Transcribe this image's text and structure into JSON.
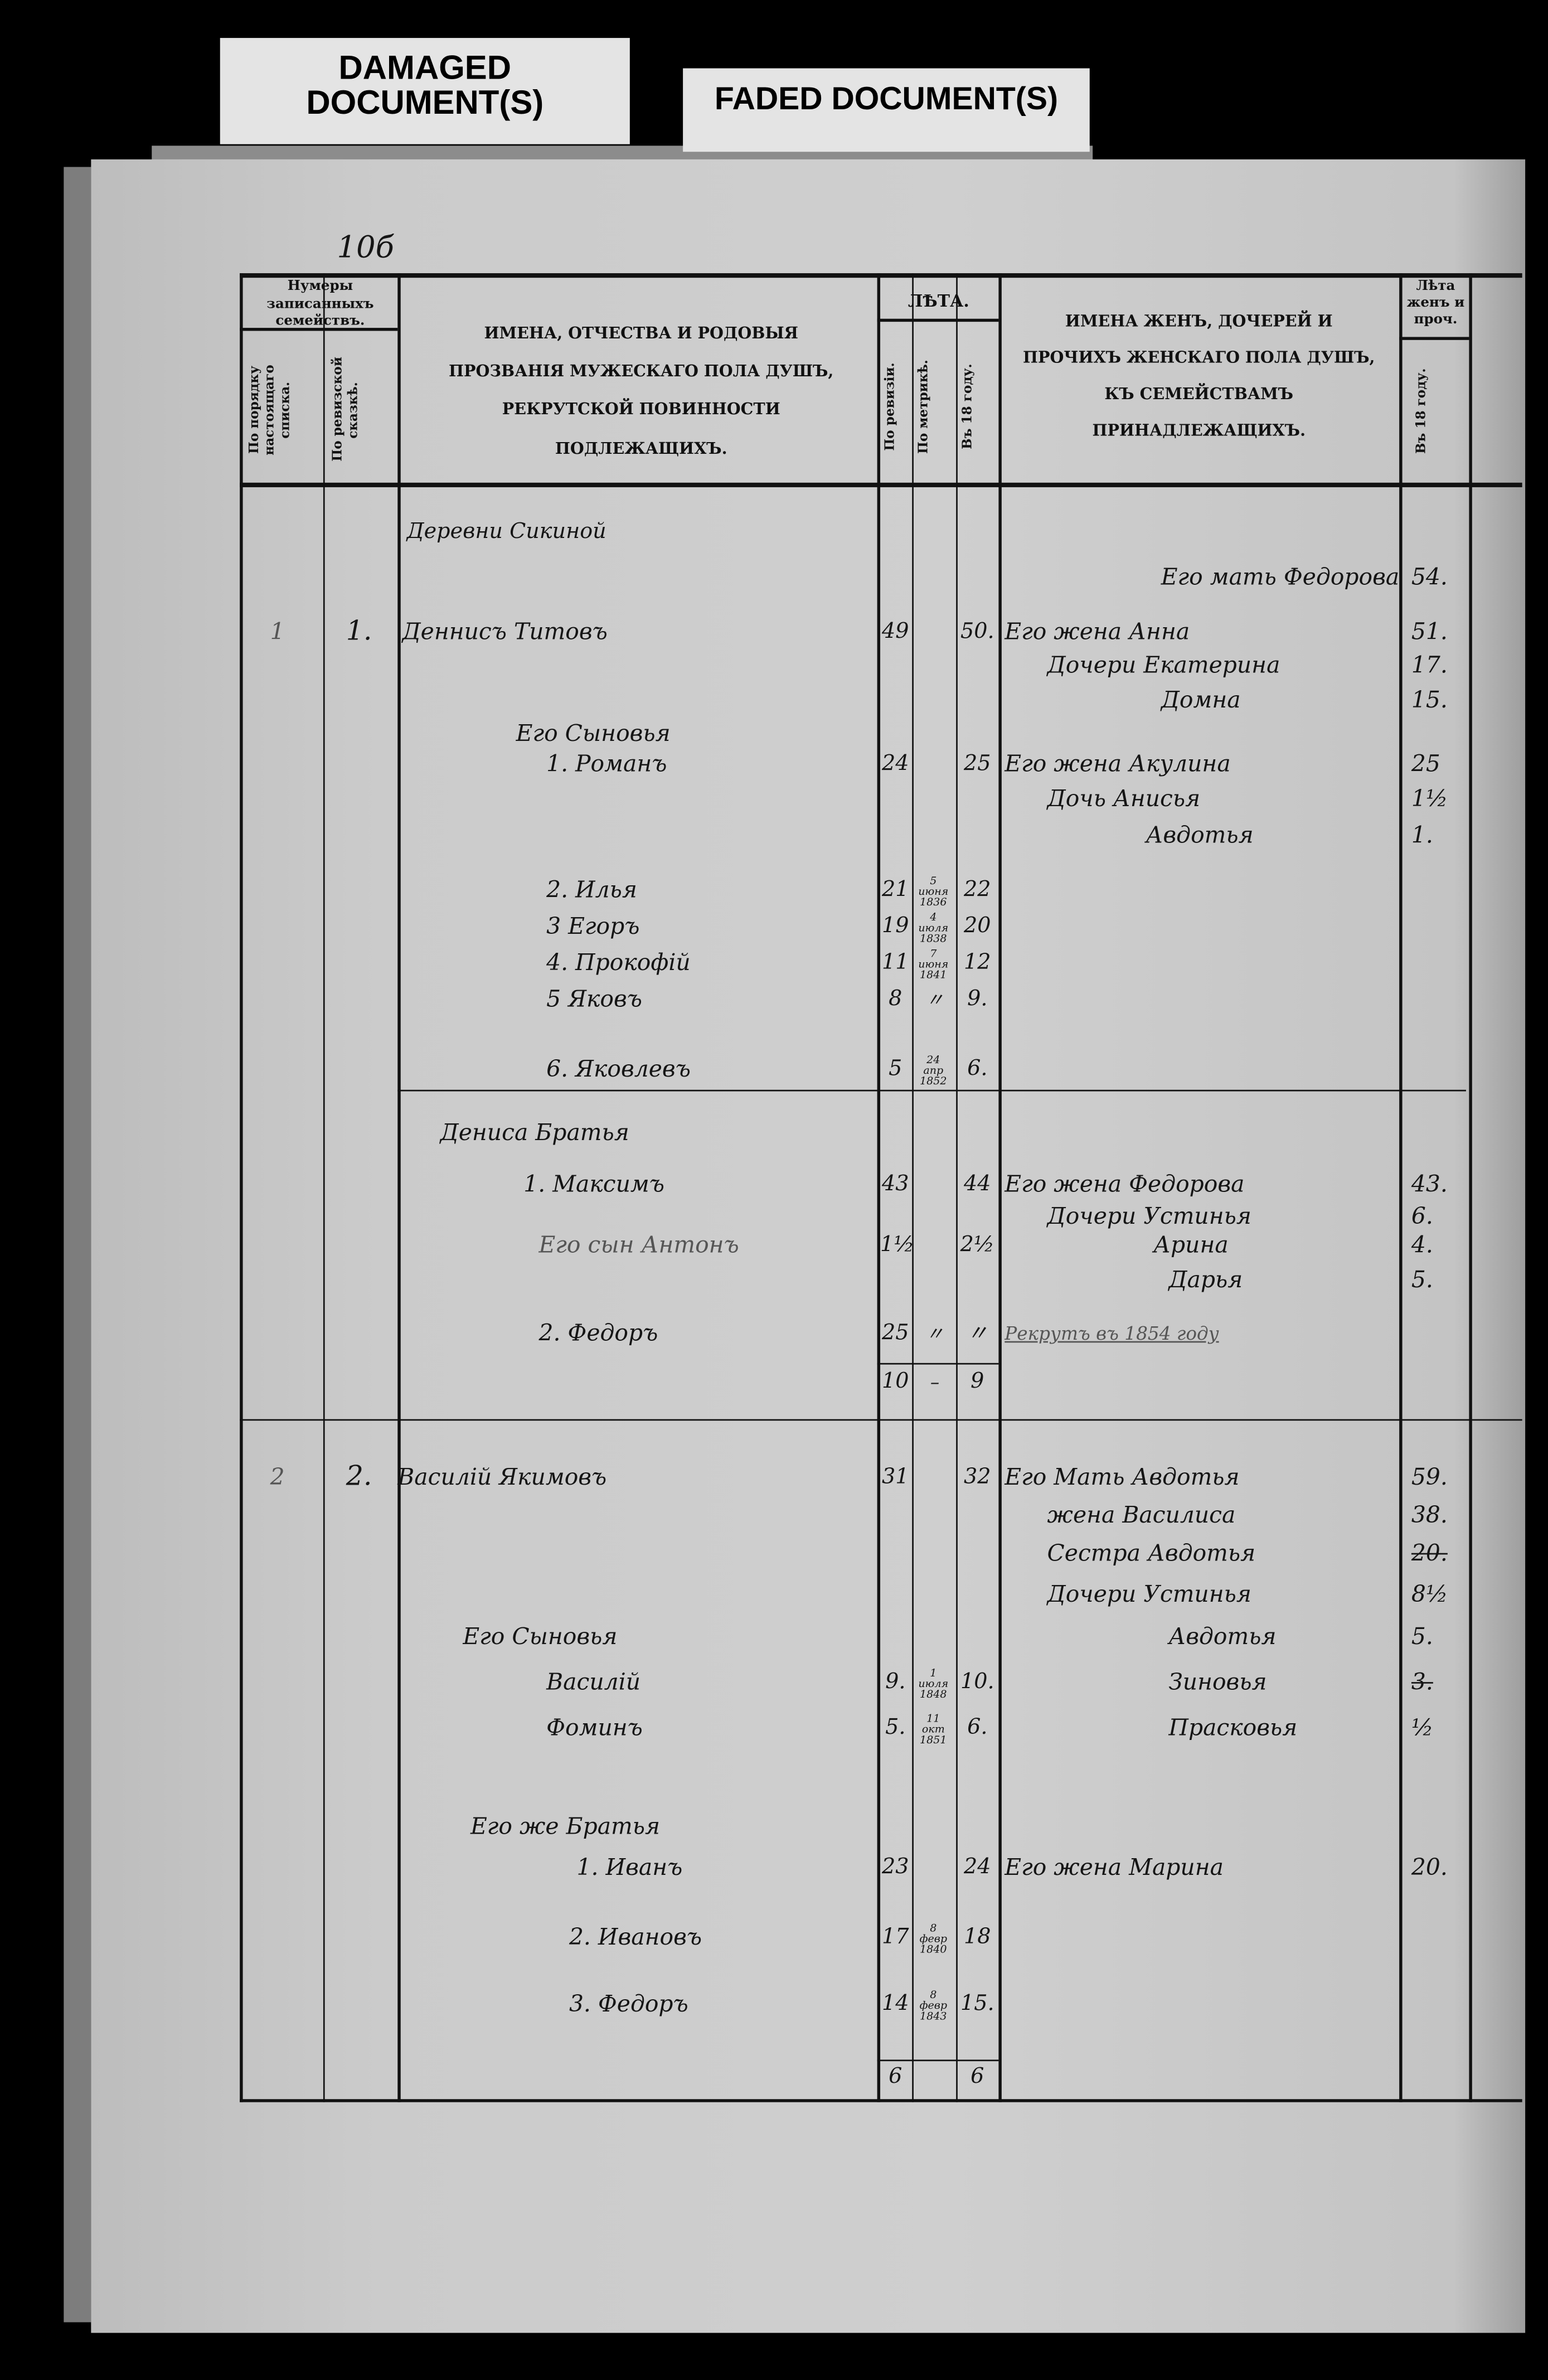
{
  "tags": {
    "damaged": "DAMAGED DOCUMENT(S)",
    "faded": "FADED DOCUMENT(S)"
  },
  "page_number": "10б",
  "header": {
    "family_numbers": "Нумеры записанныхъ семействъ.",
    "by_current_list": "По порядку настоящаго списка.",
    "by_revision_tale": "По ревизской сказкѣ.",
    "male_names": "ИМЕНА, ОТЧЕСТВА И РОДОВЫЯ ПРОЗВАНІЯ МУЖЕСКАГО ПОЛА ДУШЪ, РЕКРУТСКОЙ ПОВИННОСТИ ПОДЛЕЖАЩИХЪ.",
    "ages": "ЛѢТА.",
    "by_revision": "По ревизіи.",
    "by_metrics": "По метрикѣ.",
    "in_18_year": "Въ 18 году.",
    "female_names": "ИМЕНА ЖЕНЪ, ДОЧЕРЕЙ И ПРОЧИХЪ ЖЕНСКАГО ПОЛА ДУШЪ, КЪ СЕМЕЙСТВАМЪ ПРИНАДЛЕЖАЩИХЪ.",
    "female_ages": "Лѣта женъ и проч.",
    "female_in_18_year": "Въ 18 году."
  },
  "rows": [
    {
      "male": "Деревни Сикиной"
    },
    {
      "female": "Его мать Федорова",
      "fage": "54."
    },
    {
      "fam": "1",
      "rev_no": "1.",
      "male": "Деннисъ Титовъ",
      "rev": "49",
      "y18": "50.",
      "female": "Его жена Анна",
      "fage": "51."
    },
    {
      "female": "Дочери Екатерина",
      "fage": "17."
    },
    {
      "female": "Домна",
      "fage": "15."
    },
    {
      "male": "Его Сыновья"
    },
    {
      "male": "1. Романъ",
      "rev": "24",
      "y18": "25",
      "female": "Его жена Акулина",
      "fage": "25"
    },
    {
      "female": "Дочь Анисья",
      "fage": "1½"
    },
    {
      "female": "Авдотья",
      "fage": "1."
    },
    {
      "male": "2. Илья",
      "rev": "21",
      "metr": "5 июня 1836",
      "y18": "22"
    },
    {
      "male": "3 Егоръ",
      "rev": "19",
      "metr": "4 июля 1838",
      "y18": "20"
    },
    {
      "male": "4. Прокофій",
      "rev": "11",
      "metr": "7 июня 1841",
      "y18": "12"
    },
    {
      "male": "5 Яковъ",
      "rev": "8",
      "metr": "〃",
      "y18": "9."
    },
    {
      "male": "6. Яковлевъ",
      "rev": "5",
      "metr": "24 апр 1852",
      "y18": "6."
    },
    {
      "male": "Дениса Братья"
    },
    {
      "male": "1. Максимъ",
      "rev": "43",
      "y18": "44",
      "female": "Его жена Федорова",
      "fage": "43."
    },
    {
      "female": "Дочери Устинья",
      "fage": "6."
    },
    {
      "male": "Его сын Антонъ",
      "rev": "1½",
      "y18": "2½",
      "female": "Арина",
      "fage": "4."
    },
    {
      "female": "Дарья",
      "fage": "5."
    },
    {
      "male": "2. Федоръ",
      "rev": "25",
      "metr": "〃",
      "y18": "〃",
      "female": "Рекрутъ въ 1854 году"
    },
    {
      "rev": "10",
      "metr": "–",
      "y18": "9"
    },
    {
      "fam": "2",
      "rev_no": "2.",
      "male": "Василій Якимовъ",
      "rev": "31",
      "y18": "32",
      "female": "Его Мать Авдотья",
      "fage": "59."
    },
    {
      "female": "жена Василиса",
      "fage": "38."
    },
    {
      "female": "Сестра Авдотья",
      "fage": "20."
    },
    {
      "female": "Дочери Устинья",
      "fage": "8½"
    },
    {
      "male": "Его Сыновья",
      "female": "Авдотья",
      "fage": "5."
    },
    {
      "male": "Василій",
      "rev": "9.",
      "metr": "1 июля 1848",
      "y18": "10.",
      "female": "Зиновья",
      "fage": "3."
    },
    {
      "male": "Фоминъ",
      "rev": "5.",
      "metr": "11 окт 1851",
      "y18": "6.",
      "female": "Прасковья",
      "fage": "½"
    },
    {
      "male": "Его же Братья"
    },
    {
      "male": "1. Иванъ",
      "rev": "23",
      "y18": "24",
      "female": "Его жена Марина",
      "fage": "20."
    },
    {
      "male": "2. Ивановъ",
      "rev": "17",
      "metr": "8 февр 1840",
      "y18": "18"
    },
    {
      "male": "3. Федоръ",
      "rev": "14",
      "metr": "8 февр 1843",
      "y18": "15."
    },
    {
      "rev": "6",
      "y18": "6"
    }
  ]
}
